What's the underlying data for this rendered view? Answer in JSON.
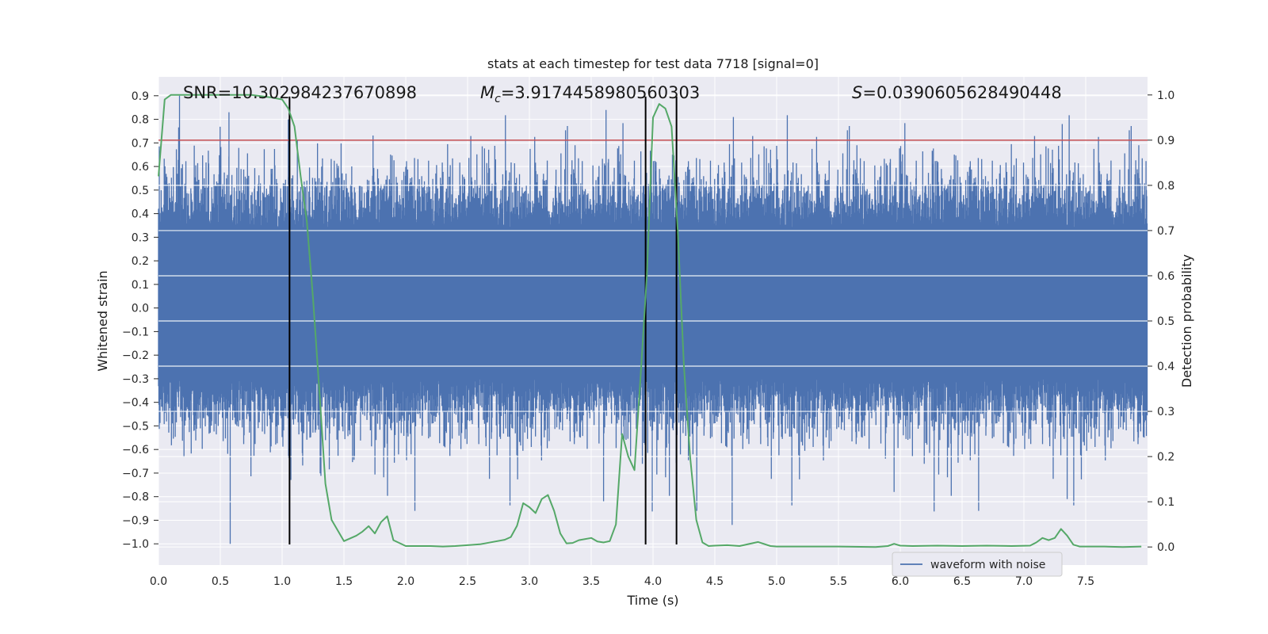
{
  "chart_data": {
    "type": "line",
    "title": "stats at each timestep for test data 7718 [signal=0]",
    "xlabel": "Time (s)",
    "ylabel_left": "Whitened strain",
    "ylabel_right": "Detection probability",
    "xlim": [
      0.0,
      8.0
    ],
    "ylim_left": [
      -1.09,
      0.98
    ],
    "ylim_right": [
      -0.04,
      1.04
    ],
    "x_ticks": [
      "0.0",
      "0.5",
      "1.0",
      "1.5",
      "2.0",
      "2.5",
      "3.0",
      "3.5",
      "4.0",
      "4.5",
      "5.0",
      "5.5",
      "6.0",
      "6.5",
      "7.0",
      "7.5"
    ],
    "y_left_ticks": [
      "0.9",
      "0.8",
      "0.7",
      "0.6",
      "0.5",
      "0.4",
      "0.3",
      "0.2",
      "0.1",
      "0.0",
      "−0.1",
      "−0.2",
      "−0.3",
      "−0.4",
      "−0.5",
      "−0.6",
      "−0.7",
      "−0.8",
      "−0.9",
      "−1.0"
    ],
    "y_right_ticks": [
      "1.0",
      "0.9",
      "0.8",
      "0.7",
      "0.6",
      "0.5",
      "0.4",
      "0.3",
      "0.2",
      "0.1",
      "0.0"
    ],
    "grid": true,
    "legend": {
      "label": "waveform with noise",
      "location": "lower-right"
    },
    "annotations": {
      "snr": "SNR=10.302984237670898",
      "mc_symbol": "M",
      "mc_subscript": "c",
      "mc_value": "=3.9174458980560303",
      "s_symbol": "S",
      "s_value": "=0.0390605628490448"
    },
    "threshold": {
      "value": 0.9,
      "axis": "right",
      "color": "#c44e52"
    },
    "vertical_lines": [
      1.06,
      3.94,
      4.19
    ],
    "series": [
      {
        "name": "waveform with noise",
        "axis": "left",
        "color": "#4c72b0",
        "description": "dense whitened noisy strain sampled over 0-8 s",
        "sample_rate_hz": 2048,
        "amplitude_range": [
          -1.0,
          0.9
        ],
        "typical_band": [
          -0.4,
          0.5
        ],
        "notable_peaks": [
          {
            "x": 0.17,
            "y": 0.9
          },
          {
            "x": 0.57,
            "y": 0.83
          },
          {
            "x": 1.05,
            "y": 0.8
          },
          {
            "x": 3.62,
            "y": 0.84
          },
          {
            "x": 4.65,
            "y": 0.81
          },
          {
            "x": 7.31,
            "y": 0.78
          }
        ],
        "notable_troughs": [
          {
            "x": 0.58,
            "y": -1.0
          },
          {
            "x": 4.64,
            "y": -0.92
          },
          {
            "x": 3.6,
            "y": -0.82
          },
          {
            "x": 7.35,
            "y": -0.81
          },
          {
            "x": 5.95,
            "y": -0.78
          }
        ]
      },
      {
        "name": "Detection probability",
        "axis": "right",
        "color": "#55a868",
        "x": [
          0.0,
          0.05,
          0.1,
          0.25,
          0.5,
          0.75,
          0.9,
          1.0,
          1.05,
          1.1,
          1.15,
          1.2,
          1.25,
          1.3,
          1.35,
          1.4,
          1.5,
          1.6,
          1.65,
          1.7,
          1.75,
          1.8,
          1.85,
          1.9,
          2.0,
          2.1,
          2.2,
          2.3,
          2.4,
          2.6,
          2.8,
          2.85,
          2.9,
          2.95,
          3.0,
          3.05,
          3.1,
          3.15,
          3.2,
          3.25,
          3.3,
          3.35,
          3.4,
          3.5,
          3.55,
          3.6,
          3.65,
          3.7,
          3.75,
          3.8,
          3.85,
          3.9,
          3.95,
          4.0,
          4.05,
          4.1,
          4.15,
          4.2,
          4.25,
          4.3,
          4.35,
          4.4,
          4.45,
          4.5,
          4.6,
          4.7,
          4.85,
          4.95,
          5.0,
          5.2,
          5.5,
          5.8,
          5.9,
          5.95,
          6.0,
          6.1,
          6.3,
          6.5,
          6.7,
          6.9,
          7.05,
          7.1,
          7.15,
          7.2,
          7.25,
          7.3,
          7.35,
          7.4,
          7.45,
          7.55,
          7.65,
          7.8,
          7.95
        ],
        "values": [
          0.82,
          0.99,
          1.0,
          1.0,
          1.0,
          1.0,
          0.995,
          0.99,
          0.97,
          0.93,
          0.82,
          0.72,
          0.55,
          0.35,
          0.14,
          0.06,
          0.013,
          0.025,
          0.034,
          0.046,
          0.03,
          0.055,
          0.068,
          0.015,
          0.002,
          0.002,
          0.002,
          0.001,
          0.002,
          0.006,
          0.016,
          0.022,
          0.047,
          0.097,
          0.088,
          0.075,
          0.106,
          0.115,
          0.08,
          0.03,
          0.008,
          0.009,
          0.015,
          0.02,
          0.012,
          0.01,
          0.013,
          0.05,
          0.25,
          0.2,
          0.17,
          0.38,
          0.6,
          0.95,
          0.98,
          0.97,
          0.93,
          0.7,
          0.4,
          0.2,
          0.06,
          0.01,
          0.002,
          0.003,
          0.004,
          0.002,
          0.011,
          0.002,
          0.001,
          0.001,
          0.001,
          0.0,
          0.002,
          0.007,
          0.003,
          0.002,
          0.003,
          0.002,
          0.003,
          0.002,
          0.003,
          0.01,
          0.02,
          0.015,
          0.02,
          0.04,
          0.025,
          0.005,
          0.001,
          0.001,
          0.001,
          0.0,
          0.001
        ]
      }
    ]
  }
}
